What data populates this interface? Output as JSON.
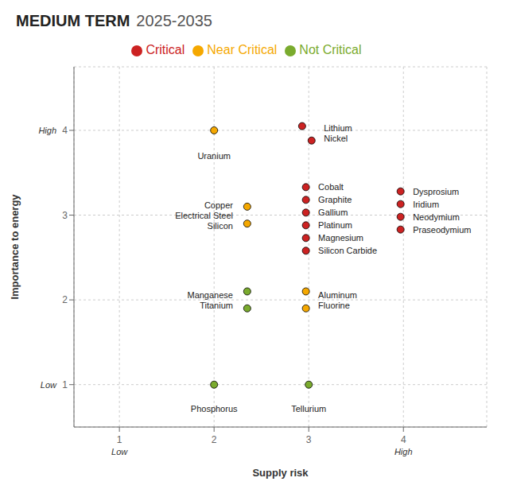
{
  "chart_data": {
    "type": "scatter",
    "title": "MEDIUM TERM",
    "subtitle": "2025-2035",
    "x_label": "Supply risk",
    "y_label": "Importance to energy",
    "xlim": [
      0.52,
      4.88
    ],
    "ylim": [
      0.5,
      4.75
    ],
    "xticks": [
      1,
      2,
      3,
      4
    ],
    "yticks": [
      1,
      2,
      3,
      4
    ],
    "grid": true,
    "legend": "top",
    "series": [
      {
        "name": "Critical",
        "color": "#cc2222",
        "x": [
          2.93,
          3.03,
          2.97,
          2.97,
          2.97,
          2.97,
          2.97,
          2.97,
          3.97,
          3.97,
          3.97,
          3.97
        ],
        "y": [
          4.05,
          3.88,
          3.33,
          3.18,
          3.03,
          2.88,
          2.73,
          2.58,
          3.28,
          3.13,
          2.98,
          2.83
        ]
      },
      {
        "name": "Near Critical",
        "color": "#f5a800",
        "x": [
          2.0,
          2.35,
          2.35,
          2.97,
          2.97
        ],
        "y": [
          4.0,
          3.1,
          2.9,
          2.1,
          1.9
        ]
      },
      {
        "name": "Not Critical",
        "color": "#7aab2e",
        "x": [
          2.35,
          2.35,
          2.0,
          3.0
        ],
        "y": [
          2.1,
          1.9,
          1.0,
          1.0
        ]
      }
    ],
    "annotations": [
      {
        "text": "Lithium\nNickel",
        "x": 3.16,
        "y": 3.97,
        "align": "left"
      },
      {
        "text": "Uranium",
        "x": 2.0,
        "y": 3.7,
        "align": "center"
      },
      {
        "text": "Cobalt",
        "x": 3.1,
        "y": 3.33,
        "align": "left"
      },
      {
        "text": "Graphite",
        "x": 3.1,
        "y": 3.18,
        "align": "left"
      },
      {
        "text": "Gallium",
        "x": 3.1,
        "y": 3.03,
        "align": "left"
      },
      {
        "text": "Platinum",
        "x": 3.1,
        "y": 2.88,
        "align": "left"
      },
      {
        "text": "Magnesium",
        "x": 3.1,
        "y": 2.73,
        "align": "left"
      },
      {
        "text": "Silicon Carbide",
        "x": 3.1,
        "y": 2.58,
        "align": "left"
      },
      {
        "text": "Dysprosium",
        "x": 4.1,
        "y": 3.28,
        "align": "left"
      },
      {
        "text": "Iridium",
        "x": 4.1,
        "y": 3.13,
        "align": "left"
      },
      {
        "text": "Neodymium",
        "x": 4.1,
        "y": 2.98,
        "align": "left"
      },
      {
        "text": "Praseodymium",
        "x": 4.1,
        "y": 2.83,
        "align": "left"
      },
      {
        "text": "Copper\nElectrical Steel\nSilicon",
        "x": 2.2,
        "y": 3.0,
        "align": "right"
      },
      {
        "text": "Manganese\nTitanium",
        "x": 2.2,
        "y": 2.0,
        "align": "right"
      },
      {
        "text": "Aluminum\nFluorine",
        "x": 3.1,
        "y": 2.0,
        "align": "left"
      },
      {
        "text": "Phosphorus",
        "x": 2.0,
        "y": 0.72,
        "align": "center"
      },
      {
        "text": "Tellurium",
        "x": 3.0,
        "y": 0.72,
        "align": "center"
      }
    ],
    "x_notes": [
      {
        "value": 1,
        "label": "Low"
      },
      {
        "value": 4,
        "label": "High"
      }
    ],
    "y_notes": [
      {
        "value": 1,
        "label": "Low"
      },
      {
        "value": 4,
        "label": "High"
      }
    ]
  }
}
